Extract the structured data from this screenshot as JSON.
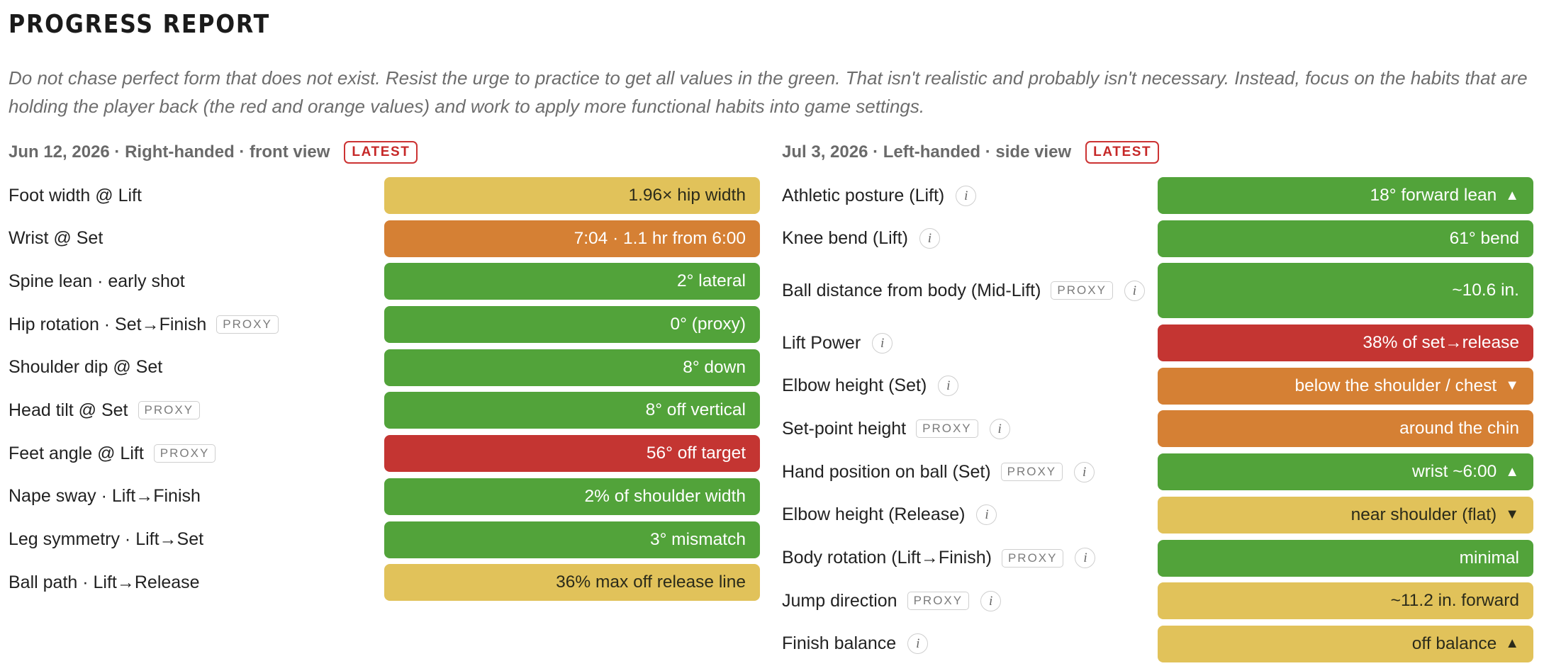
{
  "header": {
    "title": "PROGRESS REPORT",
    "intro": "Do not chase perfect form that does not exist. Resist the urge to practice to get all values in the green. That isn't realistic and probably isn't necessary. Instead, focus on the habits that are holding the player back (the red and orange values) and work to apply more functional habits into game settings."
  },
  "colors": {
    "green": "#52a33a",
    "orange": "#d58034",
    "red": "#c43532",
    "yellow": "#e1c25a"
  },
  "reports": [
    {
      "date_label": "Jun 12, 2026 · Right-handed · front view",
      "badge": "LATEST",
      "rows": [
        {
          "label": "Foot width @ Lift",
          "proxy": "",
          "info": false,
          "value": "1.96× hip width",
          "status": "yellow",
          "arrow": ""
        },
        {
          "label": "Wrist @ Set",
          "proxy": "",
          "info": false,
          "value": "7:04 · 1.1 hr from 6:00",
          "status": "orange",
          "arrow": ""
        },
        {
          "label": "Spine lean · early shot",
          "proxy": "",
          "info": false,
          "value": "2° lateral",
          "status": "green",
          "arrow": ""
        },
        {
          "label": "Hip rotation · Set→Finish",
          "proxy": "PROXY",
          "info": false,
          "value": "0° (proxy)",
          "status": "green",
          "arrow": ""
        },
        {
          "label": "Shoulder dip @ Set",
          "proxy": "",
          "info": false,
          "value": "8° down",
          "status": "green",
          "arrow": ""
        },
        {
          "label": "Head tilt @ Set",
          "proxy": "PROXY",
          "info": false,
          "value": "8° off vertical",
          "status": "green",
          "arrow": ""
        },
        {
          "label": "Feet angle @ Lift",
          "proxy": "PROXY",
          "info": false,
          "value": "56° off target",
          "status": "red",
          "arrow": ""
        },
        {
          "label": "Nape sway · Lift→Finish",
          "proxy": "",
          "info": false,
          "value": "2% of shoulder width",
          "status": "green",
          "arrow": ""
        },
        {
          "label": "Leg symmetry · Lift→Set",
          "proxy": "",
          "info": false,
          "value": "3° mismatch",
          "status": "green",
          "arrow": ""
        },
        {
          "label": "Ball path · Lift→Release",
          "proxy": "",
          "info": false,
          "value": "36% max off release line",
          "status": "yellow",
          "arrow": ""
        }
      ]
    },
    {
      "date_label": "Jul 3, 2026 · Left-handed · side view",
      "badge": "LATEST",
      "rows": [
        {
          "label": "Athletic posture (Lift)",
          "proxy": "",
          "info": true,
          "value": "18° forward lean",
          "status": "green",
          "arrow": "▲"
        },
        {
          "label": "Knee bend (Lift)",
          "proxy": "",
          "info": true,
          "value": "61° bend",
          "status": "green",
          "arrow": ""
        },
        {
          "label": "Ball distance from body (Mid-Lift)",
          "proxy": "PROXY",
          "info": true,
          "value": "~10.6 in.",
          "status": "green",
          "arrow": "",
          "tall": true
        },
        {
          "label": "Lift Power",
          "proxy": "",
          "info": true,
          "value": "38% of set→release",
          "status": "red",
          "arrow": ""
        },
        {
          "label": "Elbow height (Set)",
          "proxy": "",
          "info": true,
          "value": "below the shoulder / chest",
          "status": "orange",
          "arrow": "▼"
        },
        {
          "label": "Set-point height",
          "proxy": "PROXY",
          "info": true,
          "value": "around the chin",
          "status": "orange",
          "arrow": ""
        },
        {
          "label": "Hand position on ball (Set)",
          "proxy": "PROXY",
          "info": true,
          "value": "wrist ~6:00",
          "status": "green",
          "arrow": "▲"
        },
        {
          "label": "Elbow height (Release)",
          "proxy": "",
          "info": true,
          "value": "near shoulder (flat)",
          "status": "yellow",
          "arrow": "▼"
        },
        {
          "label": "Body rotation (Lift→Finish)",
          "proxy": "PROXY",
          "info": true,
          "value": "minimal",
          "status": "green",
          "arrow": ""
        },
        {
          "label": "Jump direction",
          "proxy": "PROXY",
          "info": true,
          "value": "~11.2 in. forward",
          "status": "yellow",
          "arrow": ""
        },
        {
          "label": "Finish balance",
          "proxy": "",
          "info": true,
          "value": "off balance",
          "status": "yellow",
          "arrow": "▲"
        }
      ]
    }
  ]
}
